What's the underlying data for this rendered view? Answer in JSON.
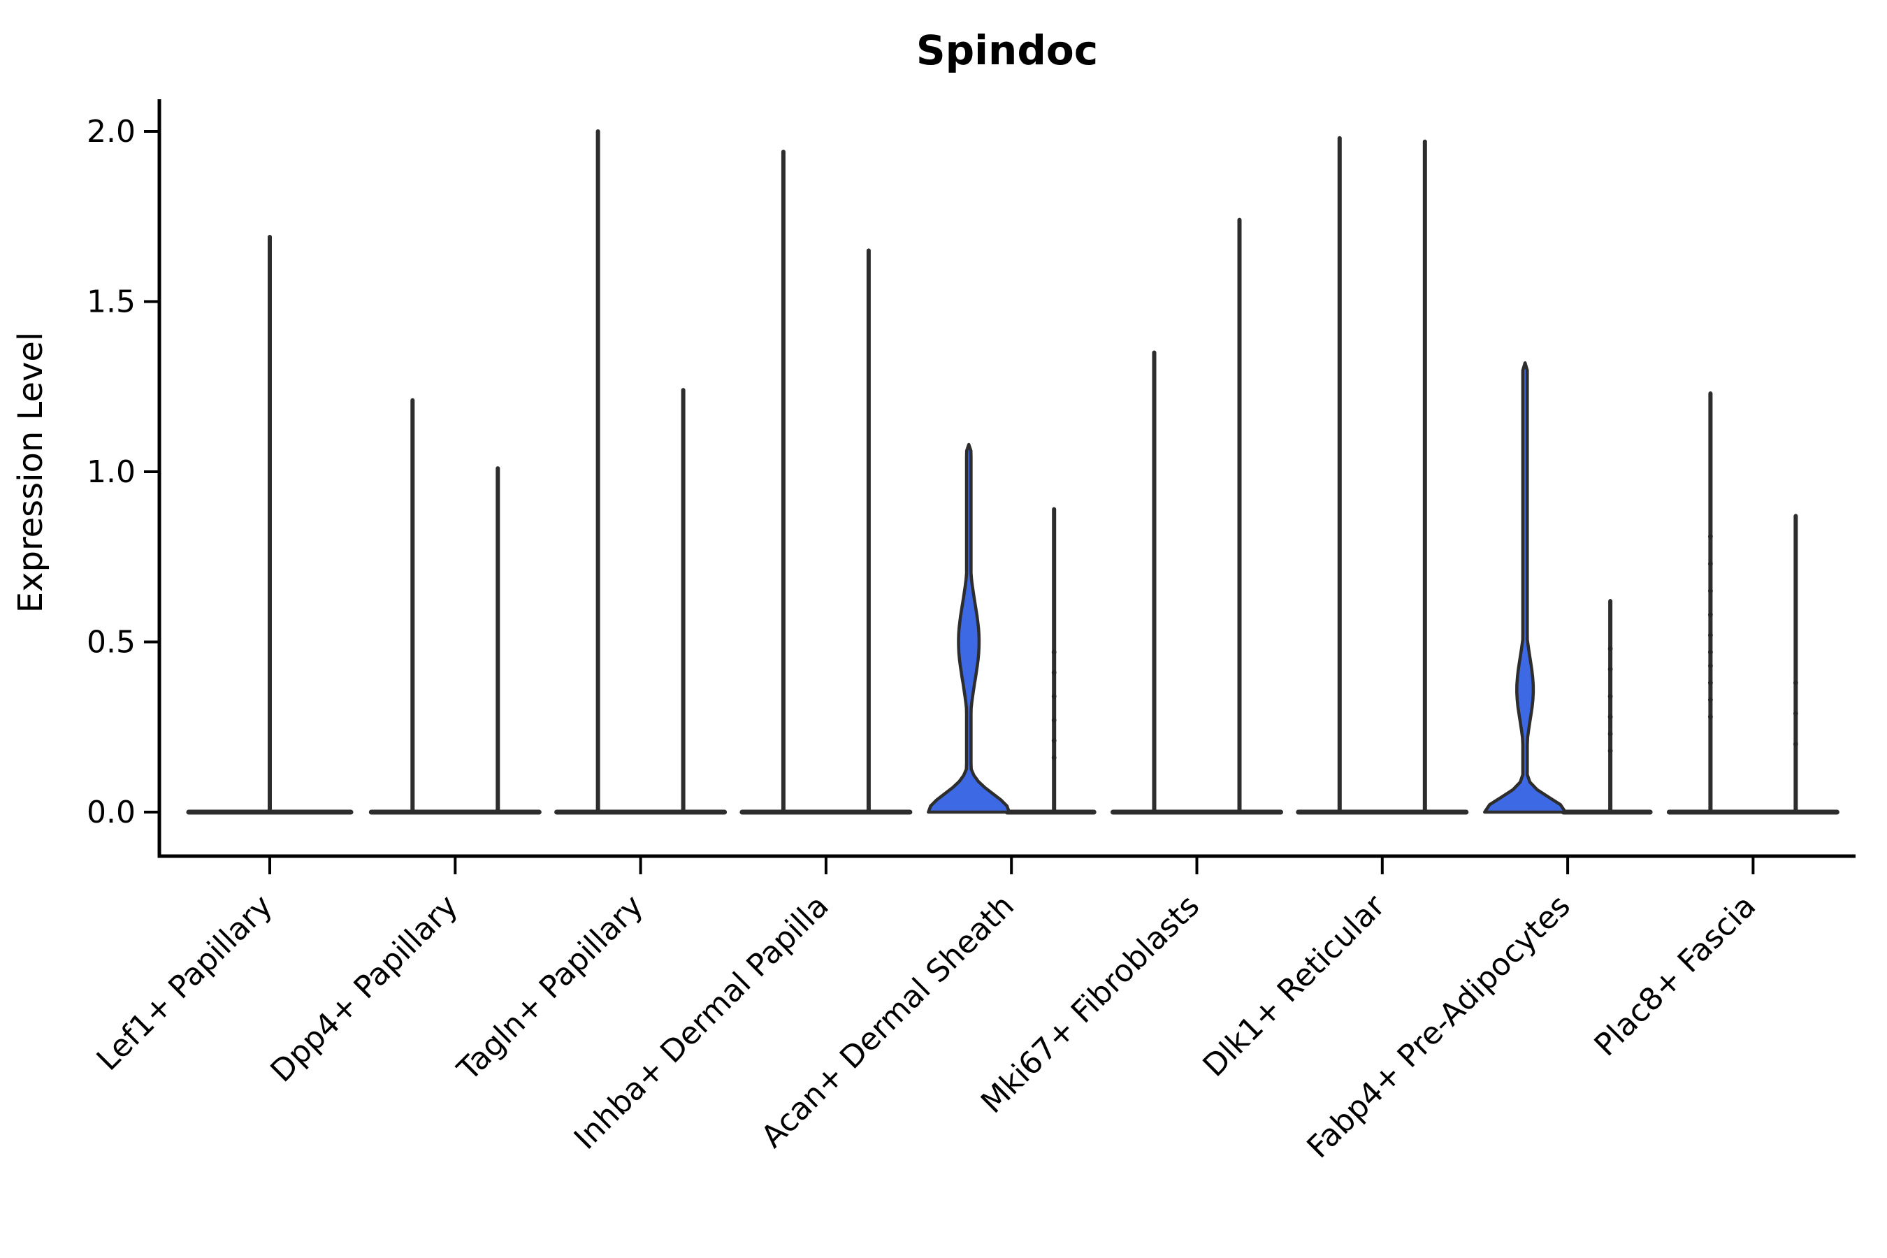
{
  "title": "Spindoc",
  "axes": {
    "ylabel": "Expression Level",
    "ytick_labels": [
      "0.0",
      "0.5",
      "1.0",
      "1.5",
      "2.0"
    ]
  },
  "colors": {
    "violin_line": "#2d2d2d",
    "highlight_fill": "#3E69E4",
    "axis": "#000000",
    "background": "#ffffff"
  },
  "chart_data": {
    "type": "violin",
    "title": "Spindoc",
    "ylabel": "Expression Level",
    "ylim": [
      -0.13,
      2.09
    ],
    "yticks": [
      0.0,
      0.5,
      1.0,
      1.5,
      2.0
    ],
    "legend": "none",
    "grid": false,
    "groups_per_category": 2,
    "categories": [
      "Lef1+ Papillary",
      "Dpp4+ Papillary",
      "Tagln+ Papillary",
      "Inhba+ Dermal Papilla",
      "Acan+ Dermal Sheath",
      "Mki67+ Fibroblasts",
      "Dlk1+ Reticular",
      "Fabp4+ Pre-Adipocytes",
      "Plac8+ Fascia"
    ],
    "violins_by_category": [
      {
        "category": "Lef1+ Papillary",
        "violins": [
          {
            "side": "center",
            "style": "spike",
            "max": 1.69,
            "filled": false
          }
        ]
      },
      {
        "category": "Dpp4+ Papillary",
        "violins": [
          {
            "side": "left",
            "style": "spike",
            "max": 1.21,
            "filled": false
          },
          {
            "side": "right",
            "style": "spike",
            "max": 1.01,
            "filled": false
          }
        ]
      },
      {
        "category": "Tagln+ Papillary",
        "violins": [
          {
            "side": "left",
            "style": "spike",
            "max": 2.0,
            "filled": false
          },
          {
            "side": "right",
            "style": "spike",
            "max": 1.24,
            "filled": false
          }
        ]
      },
      {
        "category": "Inhba+ Dermal Papilla",
        "violins": [
          {
            "side": "left",
            "style": "spike",
            "max": 1.94,
            "filled": false
          },
          {
            "side": "right",
            "style": "spike",
            "max": 1.65,
            "filled": false
          }
        ]
      },
      {
        "category": "Acan+ Dermal Sheath",
        "violins": [
          {
            "side": "left",
            "style": "violin",
            "max": 1.08,
            "filled": true,
            "kde": [
              {
                "a": 0.98,
                "m": 0.0,
                "s": 0.075
              },
              {
                "a": 0.25,
                "m": 0.5,
                "s": 0.16
              }
            ]
          },
          {
            "side": "right",
            "style": "spike",
            "max": 0.89,
            "filled": false,
            "points": [
              0.16,
              0.21,
              0.27,
              0.34,
              0.41,
              0.47
            ]
          }
        ]
      },
      {
        "category": "Mki67+ Fibroblasts",
        "violins": [
          {
            "side": "left",
            "style": "spike",
            "max": 1.35,
            "filled": false
          },
          {
            "side": "right",
            "style": "spike",
            "max": 1.74,
            "filled": false
          }
        ]
      },
      {
        "category": "Dlk1+ Reticular",
        "violins": [
          {
            "side": "left",
            "style": "spike",
            "max": 1.98,
            "filled": false
          },
          {
            "side": "right",
            "style": "spike",
            "max": 1.97,
            "filled": false
          }
        ]
      },
      {
        "category": "Fabp4+ Pre-Adipocytes",
        "violins": [
          {
            "side": "left",
            "style": "violin",
            "max": 1.32,
            "filled": true,
            "kde": [
              {
                "a": 0.98,
                "m": 0.0,
                "s": 0.06
              },
              {
                "a": 0.2,
                "m": 0.36,
                "s": 0.13
              }
            ]
          },
          {
            "side": "right",
            "style": "spike",
            "max": 0.62,
            "filled": false,
            "points": [
              0.18,
              0.23,
              0.28,
              0.34,
              0.42,
              0.48
            ]
          }
        ]
      },
      {
        "category": "Plac8+ Fascia",
        "violins": [
          {
            "side": "left",
            "style": "spike",
            "max": 1.23,
            "filled": false,
            "points": [
              0.28,
              0.33,
              0.38,
              0.43,
              0.47,
              0.52,
              0.58,
              0.65,
              0.73,
              0.81
            ]
          },
          {
            "side": "right",
            "style": "spike",
            "max": 0.87,
            "filled": false,
            "points": [
              0.2,
              0.29,
              0.38
            ]
          }
        ]
      }
    ]
  }
}
